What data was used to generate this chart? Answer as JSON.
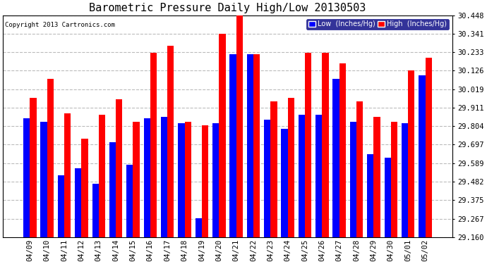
{
  "title": "Barometric Pressure Daily High/Low 20130503",
  "copyright": "Copyright 2013 Cartronics.com",
  "legend_low": "Low  (Inches/Hg)",
  "legend_high": "High  (Inches/Hg)",
  "dates": [
    "04/09",
    "04/10",
    "04/11",
    "04/12",
    "04/13",
    "04/14",
    "04/15",
    "04/16",
    "04/17",
    "04/18",
    "04/19",
    "04/20",
    "04/21",
    "04/22",
    "04/23",
    "04/24",
    "04/25",
    "04/26",
    "04/27",
    "04/28",
    "04/29",
    "04/30",
    "05/01",
    "05/02"
  ],
  "low": [
    29.85,
    29.83,
    29.52,
    29.56,
    29.47,
    29.71,
    29.58,
    29.85,
    29.86,
    29.82,
    29.27,
    29.82,
    30.22,
    30.22,
    29.84,
    29.79,
    29.87,
    29.87,
    30.08,
    29.83,
    29.64,
    29.62,
    29.82,
    30.1
  ],
  "high": [
    29.97,
    30.08,
    29.88,
    29.73,
    29.87,
    29.96,
    29.83,
    30.23,
    30.27,
    29.83,
    29.81,
    30.34,
    30.45,
    30.22,
    29.95,
    29.97,
    30.23,
    30.23,
    30.17,
    29.95,
    29.86,
    29.83,
    30.13,
    30.2
  ],
  "ylim_min": 29.16,
  "ylim_max": 30.448,
  "yticks": [
    29.16,
    29.267,
    29.375,
    29.482,
    29.589,
    29.697,
    29.804,
    29.911,
    30.019,
    30.126,
    30.233,
    30.341,
    30.448
  ],
  "bar_color_low": "#0000FF",
  "bar_color_high": "#FF0000",
  "background_color": "#FFFFFF",
  "grid_color": "#BBBBBB",
  "title_fontsize": 11,
  "tick_fontsize": 7.5,
  "bar_width": 0.38
}
